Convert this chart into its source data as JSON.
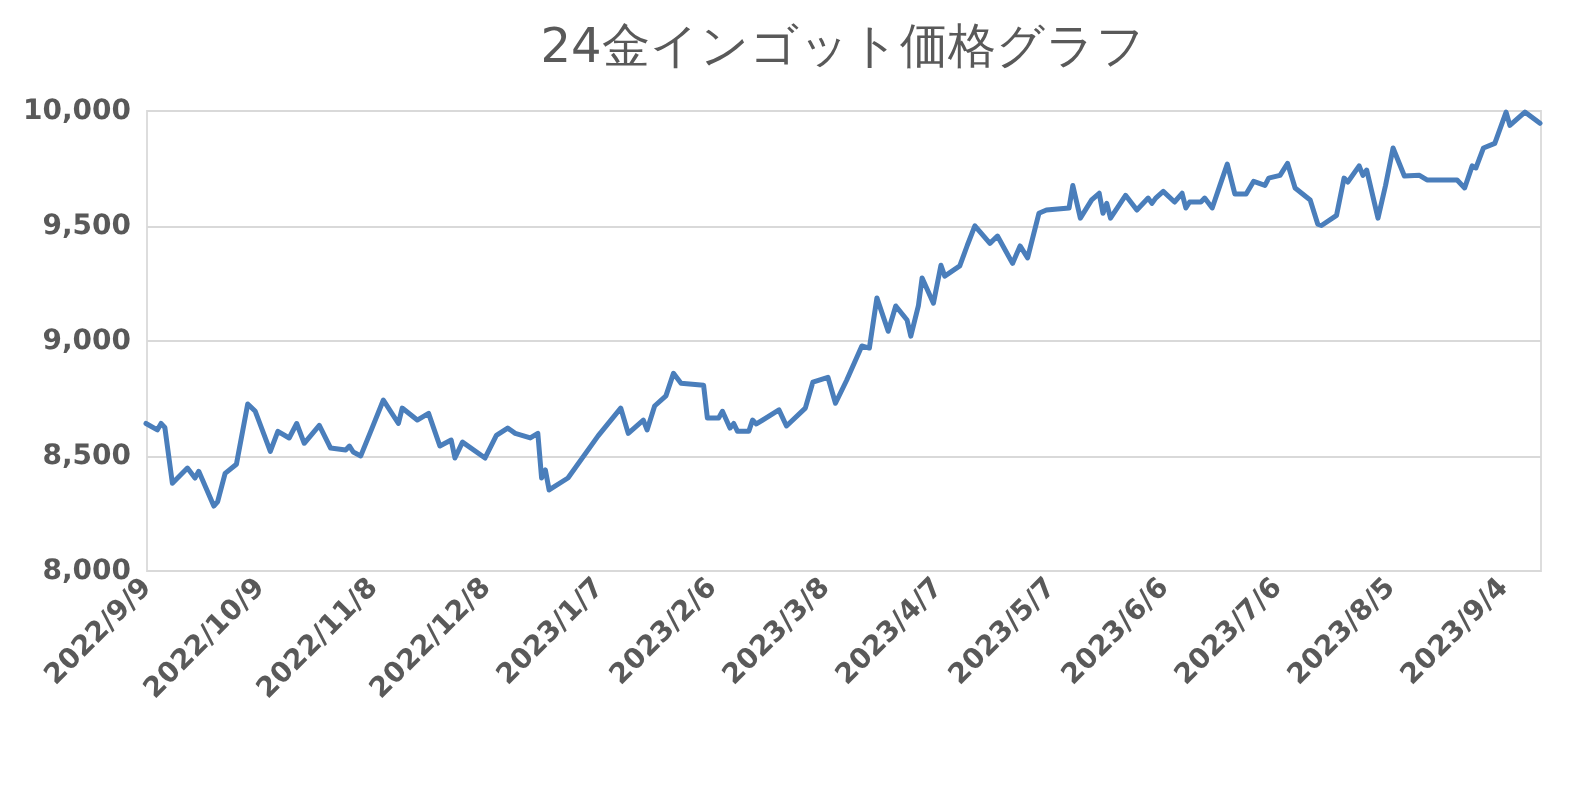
{
  "chart_data": {
    "type": "line",
    "title": "24金インゴット価格グラフ",
    "x": [
      "2022-09-09",
      "2022-09-12",
      "2022-09-13",
      "2022-09-14",
      "2022-09-16",
      "2022-09-20",
      "2022-09-22",
      "2022-09-23",
      "2022-09-27",
      "2022-09-28",
      "2022-09-30",
      "2022-10-03",
      "2022-10-06",
      "2022-10-08",
      "2022-10-12",
      "2022-10-14",
      "2022-10-17",
      "2022-10-19",
      "2022-10-21",
      "2022-10-25",
      "2022-10-28",
      "2022-11-01",
      "2022-11-02",
      "2022-11-03",
      "2022-11-05",
      "2022-11-08",
      "2022-11-11",
      "2022-11-15",
      "2022-11-16",
      "2022-11-20",
      "2022-11-23",
      "2022-11-26",
      "2022-11-29",
      "2022-11-30",
      "2022-12-02",
      "2022-12-08",
      "2022-12-11",
      "2022-12-14",
      "2022-12-16",
      "2022-12-20",
      "2022-12-22",
      "2022-12-23",
      "2022-12-24",
      "2022-12-25",
      "2022-12-30",
      "2023-01-07",
      "2023-01-13",
      "2023-01-15",
      "2023-01-19",
      "2023-01-20",
      "2023-01-22",
      "2023-01-25",
      "2023-01-27",
      "2023-01-29",
      "2023-02-04",
      "2023-02-05",
      "2023-02-08",
      "2023-02-09",
      "2023-02-11",
      "2023-02-12",
      "2023-02-13",
      "2023-02-16",
      "2023-02-17",
      "2023-02-18",
      "2023-02-24",
      "2023-02-26",
      "2023-03-03",
      "2023-03-05",
      "2023-03-09",
      "2023-03-11",
      "2023-03-14",
      "2023-03-18",
      "2023-03-20",
      "2023-03-22",
      "2023-03-25",
      "2023-03-27",
      "2023-03-30",
      "2023-03-31",
      "2023-04-02",
      "2023-04-03",
      "2023-04-06",
      "2023-04-08",
      "2023-04-09",
      "2023-04-13",
      "2023-04-15",
      "2023-04-17",
      "2023-04-21",
      "2023-04-23",
      "2023-04-27",
      "2023-04-29",
      "2023-05-01",
      "2023-05-04",
      "2023-05-06",
      "2023-05-12",
      "2023-05-13",
      "2023-05-15",
      "2023-05-18",
      "2023-05-20",
      "2023-05-21",
      "2023-05-22",
      "2023-05-23",
      "2023-05-27",
      "2023-05-30",
      "2023-06-02",
      "2023-06-03",
      "2023-06-04",
      "2023-06-06",
      "2023-06-09",
      "2023-06-11",
      "2023-06-12",
      "2023-06-13",
      "2023-06-16",
      "2023-06-17",
      "2023-06-19",
      "2023-06-21",
      "2023-06-23",
      "2023-06-25",
      "2023-06-28",
      "2023-06-30",
      "2023-07-03",
      "2023-07-04",
      "2023-07-07",
      "2023-07-09",
      "2023-07-11",
      "2023-07-15",
      "2023-07-17",
      "2023-07-18",
      "2023-07-22",
      "2023-07-24",
      "2023-07-25",
      "2023-07-28",
      "2023-07-29",
      "2023-07-30",
      "2023-08-02",
      "2023-08-04",
      "2023-08-06",
      "2023-08-09",
      "2023-08-13",
      "2023-08-15",
      "2023-08-23",
      "2023-08-25",
      "2023-08-27",
      "2023-08-28",
      "2023-08-30",
      "2023-09-02",
      "2023-09-05",
      "2023-09-06",
      "2023-09-10",
      "2023-09-14"
    ],
    "series": [
      {
        "color": "#4a7ebb",
        "values": [
          8637,
          8609,
          8637,
          8620,
          8377,
          8443,
          8400,
          8429,
          8278,
          8296,
          8420,
          8460,
          8722,
          8690,
          8516,
          8603,
          8574,
          8637,
          8551,
          8629,
          8530,
          8522,
          8539,
          8513,
          8496,
          8617,
          8739,
          8637,
          8704,
          8652,
          8681,
          8539,
          8565,
          8487,
          8556,
          8487,
          8585,
          8617,
          8594,
          8574,
          8594,
          8400,
          8435,
          8348,
          8400,
          8583,
          8704,
          8594,
          8652,
          8609,
          8713,
          8757,
          8855,
          8812,
          8803,
          8661,
          8661,
          8690,
          8617,
          8637,
          8603,
          8603,
          8652,
          8635,
          8696,
          8626,
          8704,
          8817,
          8838,
          8725,
          8826,
          8974,
          8965,
          9183,
          9038,
          9148,
          9087,
          9017,
          9148,
          9270,
          9160,
          9325,
          9278,
          9322,
          9412,
          9496,
          9420,
          9452,
          9333,
          9409,
          9357,
          9551,
          9565,
          9574,
          9672,
          9530,
          9609,
          9638,
          9551,
          9594,
          9530,
          9629,
          9565,
          9617,
          9594,
          9617,
          9646,
          9600,
          9638,
          9574,
          9600,
          9600,
          9617,
          9574,
          9670,
          9765,
          9635,
          9635,
          9690,
          9672,
          9704,
          9716,
          9768,
          9661,
          9609,
          9504,
          9498,
          9542,
          9704,
          9687,
          9757,
          9716,
          9739,
          9530,
          9672,
          9835,
          9713,
          9716,
          9696,
          9696,
          9661,
          9757,
          9748,
          9835,
          9855,
          9991,
          9933,
          9991,
          9942
        ]
      }
    ],
    "xlim": [
      "2022-09-09",
      "2023-09-14"
    ],
    "xticks": [
      {
        "value": "2022-09-09",
        "label": "2022/9/9"
      },
      {
        "value": "2022-10-09",
        "label": "2022/10/9"
      },
      {
        "value": "2022-11-08",
        "label": "2022/11/8"
      },
      {
        "value": "2022-12-08",
        "label": "2022/12/8"
      },
      {
        "value": "2023-01-07",
        "label": "2023/1/7"
      },
      {
        "value": "2023-02-06",
        "label": "2023/2/6"
      },
      {
        "value": "2023-03-08",
        "label": "2023/3/8"
      },
      {
        "value": "2023-04-07",
        "label": "2023/4/7"
      },
      {
        "value": "2023-05-07",
        "label": "2023/5/7"
      },
      {
        "value": "2023-06-06",
        "label": "2023/6/6"
      },
      {
        "value": "2023-07-06",
        "label": "2023/7/6"
      },
      {
        "value": "2023-08-05",
        "label": "2023/8/5"
      },
      {
        "value": "2023-09-04",
        "label": "2023/9/4"
      }
    ],
    "ylim": [
      8000,
      10000
    ],
    "yticks": [
      {
        "value": 8000,
        "label": "8,000"
      },
      {
        "value": 8500,
        "label": "8,500"
      },
      {
        "value": 9000,
        "label": "9,000"
      },
      {
        "value": 9500,
        "label": "9,500"
      },
      {
        "value": 10000,
        "label": "10,000"
      }
    ],
    "grid": "y",
    "marker": "none",
    "line_style": "solid"
  }
}
